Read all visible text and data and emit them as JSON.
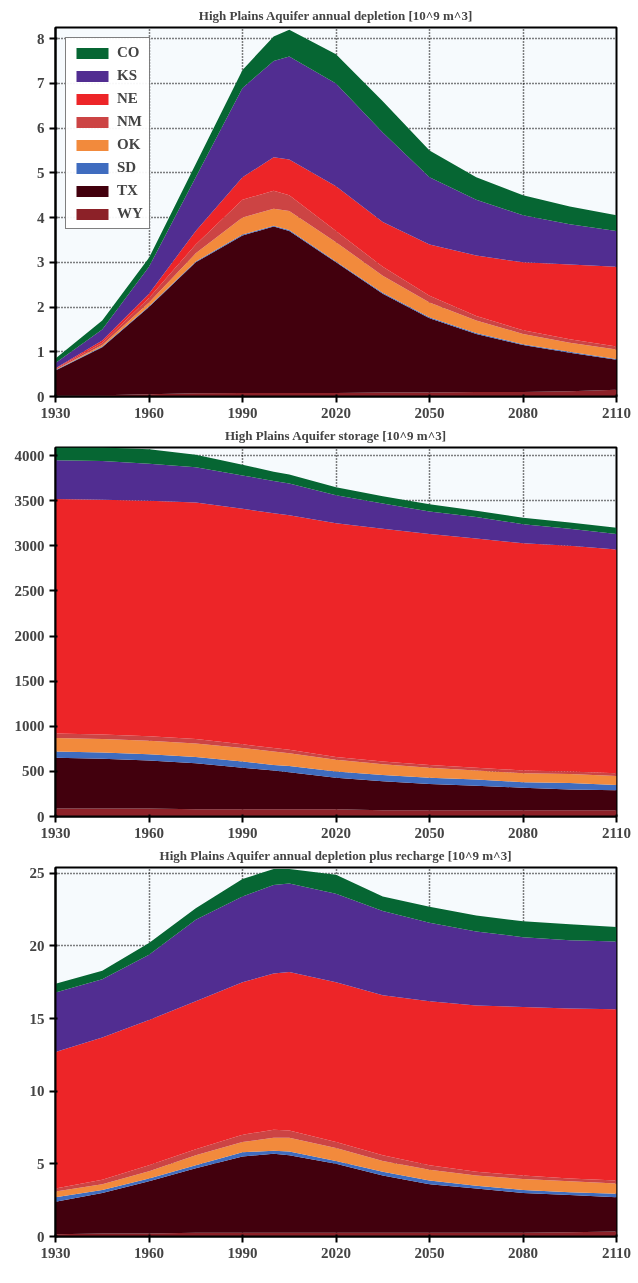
{
  "chart_data": [
    {
      "type": "area",
      "stacked": true,
      "title": "High Plains Aquifer annual depletion [10^9 m^3]",
      "x": [
        1930,
        1945,
        1960,
        1975,
        1990,
        2000,
        2005,
        2020,
        2035,
        2050,
        2065,
        2080,
        2095,
        2110
      ],
      "xlim": [
        1930,
        2110
      ],
      "xticks": [
        1930,
        1960,
        1990,
        2020,
        2050,
        2080,
        2110
      ],
      "ylim": [
        0,
        8.25
      ],
      "yticks": [
        0,
        1,
        2,
        3,
        4,
        5,
        6,
        7,
        8
      ],
      "grid": true,
      "legend": "top left",
      "series": [
        {
          "name": "WY",
          "color": "#8c2128",
          "values": [
            0.02,
            0.03,
            0.05,
            0.07,
            0.08,
            0.08,
            0.08,
            0.08,
            0.09,
            0.09,
            0.1,
            0.1,
            0.12,
            0.15
          ]
        },
        {
          "name": "TX",
          "color": "#42000d",
          "values": [
            0.56,
            1.07,
            1.95,
            2.93,
            3.52,
            3.72,
            3.62,
            2.92,
            2.21,
            1.66,
            1.3,
            1.05,
            0.86,
            0.67
          ]
        },
        {
          "name": "SD",
          "color": "#3f6cbf",
          "values": [
            0.01,
            0.02,
            0.02,
            0.02,
            0.02,
            0.02,
            0.02,
            0.02,
            0.02,
            0.02,
            0.02,
            0.02,
            0.02,
            0.02
          ]
        },
        {
          "name": "OK",
          "color": "#f28a3c",
          "values": [
            0.01,
            0.03,
            0.08,
            0.18,
            0.38,
            0.38,
            0.43,
            0.43,
            0.38,
            0.33,
            0.28,
            0.23,
            0.2,
            0.21
          ]
        },
        {
          "name": "NM",
          "color": "#cc4444",
          "values": [
            0.02,
            0.05,
            0.1,
            0.2,
            0.4,
            0.4,
            0.35,
            0.25,
            0.2,
            0.15,
            0.1,
            0.08,
            0.08,
            0.07
          ]
        },
        {
          "name": "NE",
          "color": "#ed2528",
          "values": [
            0.01,
            0.05,
            0.1,
            0.3,
            0.5,
            0.75,
            0.8,
            1.0,
            1.0,
            1.15,
            1.35,
            1.52,
            1.67,
            1.78
          ]
        },
        {
          "name": "KS",
          "color": "#512d91",
          "values": [
            0.12,
            0.25,
            0.6,
            1.2,
            2.0,
            2.15,
            2.3,
            2.3,
            2.0,
            1.5,
            1.25,
            1.05,
            0.9,
            0.8
          ]
        },
        {
          "name": "CO",
          "color": "#066633",
          "values": [
            0.1,
            0.2,
            0.2,
            0.3,
            0.4,
            0.55,
            0.6,
            0.65,
            0.7,
            0.6,
            0.5,
            0.45,
            0.4,
            0.35
          ]
        }
      ]
    },
    {
      "type": "area",
      "stacked": true,
      "title": "High Plains Aquifer storage [10^9 m^3]",
      "x": [
        1930,
        1945,
        1960,
        1975,
        1990,
        2000,
        2005,
        2020,
        2035,
        2050,
        2065,
        2080,
        2095,
        2110
      ],
      "xlim": [
        1930,
        2110
      ],
      "xticks": [
        1930,
        1960,
        1990,
        2020,
        2050,
        2080,
        2110
      ],
      "ylim": [
        0,
        4090
      ],
      "yticks": [
        0,
        500,
        1000,
        1500,
        2000,
        2500,
        3000,
        3500,
        4000
      ],
      "grid": true,
      "series": [
        {
          "color": "#8c2128",
          "values": [
            90,
            90,
            90,
            80,
            80,
            80,
            80,
            80,
            70,
            70,
            70,
            70,
            70,
            70
          ]
        },
        {
          "color": "#42000d",
          "values": [
            560,
            550,
            530,
            510,
            460,
            430,
            410,
            350,
            320,
            290,
            270,
            250,
            230,
            220
          ]
        },
        {
          "color": "#3f6cbf",
          "values": [
            70,
            70,
            70,
            70,
            70,
            60,
            70,
            70,
            70,
            70,
            70,
            60,
            70,
            60
          ]
        },
        {
          "color": "#f28a3c",
          "values": [
            150,
            150,
            150,
            150,
            150,
            150,
            140,
            130,
            120,
            110,
            100,
            100,
            100,
            100
          ]
        },
        {
          "color": "#cc4444",
          "values": [
            50,
            50,
            50,
            50,
            40,
            40,
            40,
            30,
            30,
            30,
            30,
            30,
            30,
            30
          ]
        },
        {
          "color": "#ed2528",
          "values": [
            2600,
            2600,
            2610,
            2620,
            2610,
            2600,
            2600,
            2590,
            2580,
            2560,
            2540,
            2520,
            2500,
            2480
          ]
        },
        {
          "color": "#512d91",
          "values": [
            430,
            430,
            410,
            390,
            370,
            360,
            350,
            310,
            280,
            250,
            240,
            210,
            190,
            170
          ]
        },
        {
          "color": "#066633",
          "values": [
            140,
            150,
            160,
            140,
            120,
            100,
            100,
            90,
            80,
            80,
            70,
            70,
            70,
            70
          ]
        }
      ]
    },
    {
      "type": "area",
      "stacked": true,
      "title": "High Plains Aquifer annual depletion plus recharge [10^9 m^3]",
      "x": [
        1930,
        1945,
        1960,
        1975,
        1990,
        2000,
        2005,
        2020,
        2035,
        2050,
        2065,
        2080,
        2095,
        2110
      ],
      "xlim": [
        1930,
        2110
      ],
      "xticks": [
        1930,
        1960,
        1990,
        2020,
        2050,
        2080,
        2110
      ],
      "ylim": [
        0,
        25.4
      ],
      "yticks": [
        0,
        5,
        10,
        15,
        20,
        25
      ],
      "grid": true,
      "series": [
        {
          "color": "#8c2128",
          "values": [
            0.15,
            0.2,
            0.2,
            0.25,
            0.25,
            0.25,
            0.25,
            0.25,
            0.25,
            0.25,
            0.25,
            0.25,
            0.3,
            0.35
          ]
        },
        {
          "color": "#42000d",
          "values": [
            2.25,
            2.8,
            3.6,
            4.45,
            5.25,
            5.45,
            5.35,
            4.75,
            3.95,
            3.35,
            3.05,
            2.75,
            2.55,
            2.35
          ]
        },
        {
          "color": "#3f6cbf",
          "values": [
            0.3,
            0.2,
            0.2,
            0.2,
            0.3,
            0.2,
            0.25,
            0.2,
            0.25,
            0.25,
            0.2,
            0.2,
            0.2,
            0.25
          ]
        },
        {
          "color": "#f28a3c",
          "values": [
            0.4,
            0.4,
            0.5,
            0.7,
            0.7,
            0.9,
            0.95,
            0.9,
            0.75,
            0.75,
            0.7,
            0.75,
            0.75,
            0.7
          ]
        },
        {
          "color": "#cc4444",
          "values": [
            0.2,
            0.3,
            0.4,
            0.4,
            0.5,
            0.55,
            0.5,
            0.4,
            0.4,
            0.3,
            0.25,
            0.25,
            0.2,
            0.2
          ]
        },
        {
          "color": "#ed2528",
          "values": [
            9.4,
            9.8,
            10.0,
            10.2,
            10.5,
            10.75,
            10.9,
            11.0,
            11.0,
            11.3,
            11.45,
            11.6,
            11.7,
            11.8
          ]
        },
        {
          "color": "#512d91",
          "values": [
            4.1,
            4.0,
            4.5,
            5.6,
            5.9,
            6.1,
            6.1,
            6.1,
            5.8,
            5.4,
            5.1,
            4.8,
            4.7,
            4.65
          ]
        },
        {
          "color": "#066633",
          "values": [
            0.6,
            0.6,
            0.8,
            0.8,
            1.2,
            1.1,
            1.0,
            1.3,
            1.0,
            1.1,
            1.1,
            1.1,
            1.1,
            1.0
          ]
        }
      ]
    }
  ]
}
